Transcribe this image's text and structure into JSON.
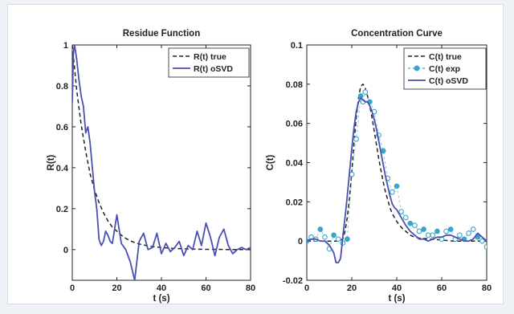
{
  "chart_data": [
    {
      "type": "line",
      "title": "Residue Function",
      "xlabel": "t (s)",
      "ylabel": "R(t)",
      "xlim": [
        0,
        80
      ],
      "ylim": [
        -0.15,
        1
      ],
      "xticks": [
        0,
        20,
        40,
        60,
        80
      ],
      "yticks": [
        0,
        0.2,
        0.4,
        0.6,
        0.8,
        1
      ],
      "xtick_labels": [
        "0",
        "20",
        "40",
        "60",
        "80"
      ],
      "ytick_labels": [
        "0",
        "0.2",
        "0.4",
        "0.6",
        "0.8",
        "1"
      ],
      "legend_position": "top-right",
      "series": [
        {
          "name": "R(t) true",
          "style": "dashed",
          "color": "#222222",
          "x": [
            0,
            2,
            4,
            6,
            8,
            10,
            12,
            14,
            16,
            18,
            20,
            22,
            24,
            26,
            28,
            30,
            35,
            40,
            45,
            50,
            55,
            60,
            65,
            70,
            75,
            80
          ],
          "y": [
            1.0,
            0.78,
            0.61,
            0.48,
            0.37,
            0.29,
            0.23,
            0.18,
            0.14,
            0.11,
            0.09,
            0.07,
            0.055,
            0.043,
            0.034,
            0.027,
            0.016,
            0.01,
            0.006,
            0.004,
            0.002,
            0.001,
            0.001,
            0.0,
            0.0,
            0.0
          ]
        },
        {
          "name": "R(t) oSVD",
          "style": "solid",
          "color": "#4a4fb3",
          "x": [
            0,
            0.5,
            1,
            2,
            3,
            4,
            5,
            6,
            7,
            8,
            9,
            10,
            11,
            12,
            13,
            14,
            15,
            16,
            17,
            18,
            20,
            22,
            24,
            26,
            28,
            30,
            32,
            34,
            36,
            38,
            40,
            42,
            44,
            46,
            48,
            50,
            52,
            54,
            56,
            58,
            60,
            62,
            64,
            66,
            68,
            70,
            72,
            74,
            76,
            78,
            80
          ],
          "y": [
            0.72,
            0.96,
            1.0,
            0.93,
            0.83,
            0.75,
            0.7,
            0.57,
            0.6,
            0.52,
            0.4,
            0.28,
            0.2,
            0.05,
            0.02,
            0.04,
            0.09,
            0.07,
            0.04,
            0.03,
            0.17,
            0.03,
            0.0,
            -0.06,
            -0.15,
            0.04,
            0.08,
            0.0,
            0.01,
            0.08,
            -0.02,
            0.03,
            -0.01,
            0.01,
            0.04,
            -0.03,
            0.02,
            0.0,
            0.09,
            0.02,
            0.13,
            0.06,
            -0.03,
            0.06,
            0.1,
            0.02,
            -0.02,
            0.0,
            0.01,
            0.0,
            0.01
          ]
        }
      ]
    },
    {
      "type": "line",
      "title": "Concentration Curve",
      "xlabel": "t (s)",
      "ylabel": "C(t)",
      "xlim": [
        0,
        80
      ],
      "ylim": [
        -0.02,
        0.1
      ],
      "xticks": [
        0,
        20,
        40,
        60,
        80
      ],
      "yticks": [
        -0.02,
        0,
        0.02,
        0.04,
        0.06,
        0.08,
        0.1
      ],
      "xtick_labels": [
        "0",
        "20",
        "40",
        "60",
        "80"
      ],
      "ytick_labels": [
        "-0.02",
        "0",
        "0.02",
        "0.04",
        "0.06",
        "0.08",
        "0.1"
      ],
      "legend_position": "top-right",
      "series": [
        {
          "name": "C(t) true",
          "style": "dashed",
          "color": "#222222",
          "x": [
            0,
            4,
            8,
            10,
            12,
            14,
            16,
            17,
            18,
            19,
            20,
            21,
            22,
            23,
            24,
            25,
            26,
            27,
            28,
            29,
            30,
            31,
            32,
            33,
            34,
            35,
            36,
            37,
            38,
            39,
            40,
            42,
            44,
            46,
            48,
            50,
            55,
            60,
            65,
            70,
            75,
            80
          ],
          "y": [
            0.0,
            0.0,
            0.0,
            0.0,
            0.0,
            0.0,
            0.001,
            0.005,
            0.012,
            0.022,
            0.035,
            0.05,
            0.063,
            0.073,
            0.079,
            0.08,
            0.078,
            0.074,
            0.069,
            0.063,
            0.056,
            0.049,
            0.042,
            0.036,
            0.03,
            0.025,
            0.021,
            0.017,
            0.014,
            0.012,
            0.01,
            0.007,
            0.005,
            0.003,
            0.002,
            0.0015,
            0.001,
            0.0005,
            0.0,
            0.0,
            0.0,
            0.0
          ]
        },
        {
          "name": "C(t) exp",
          "style": "markers",
          "color": "#39a6c9",
          "x": [
            0,
            2,
            4,
            6,
            8,
            10,
            12,
            14,
            16,
            18,
            20,
            22,
            24,
            25,
            26,
            28,
            30,
            32,
            34,
            36,
            38,
            40,
            42,
            44,
            46,
            48,
            50,
            52,
            54,
            56,
            58,
            60,
            62,
            64,
            66,
            68,
            70,
            72,
            74,
            76,
            78,
            80
          ],
          "y": [
            0.0,
            0.002,
            0.001,
            0.006,
            0.002,
            -0.004,
            0.003,
            0.001,
            -0.001,
            0.001,
            0.034,
            0.052,
            0.074,
            0.071,
            0.076,
            0.071,
            0.066,
            0.054,
            0.046,
            0.032,
            0.025,
            0.028,
            0.015,
            0.012,
            0.009,
            0.008,
            0.005,
            0.006,
            0.003,
            0.003,
            0.005,
            0.001,
            0.005,
            0.006,
            0.001,
            0.003,
            0.001,
            0.004,
            0.006,
            0.002,
            0.0,
            -0.003
          ]
        },
        {
          "name": "C(t) oSVD",
          "style": "solid",
          "color": "#4a4fb3",
          "x": [
            0,
            2,
            4,
            6,
            8,
            10,
            12,
            13,
            14,
            15,
            16,
            17,
            18,
            19,
            20,
            21,
            22,
            23,
            24,
            25,
            26,
            27,
            28,
            29,
            30,
            31,
            32,
            33,
            34,
            35,
            36,
            37,
            38,
            39,
            40,
            42,
            44,
            46,
            48,
            50,
            52,
            54,
            56,
            58,
            60,
            62,
            64,
            66,
            68,
            70,
            72,
            74,
            76,
            78,
            80
          ],
          "y": [
            0.0,
            0.001,
            0.001,
            0.0,
            0.0,
            -0.002,
            -0.006,
            -0.011,
            -0.011,
            -0.009,
            0.002,
            0.012,
            0.023,
            0.035,
            0.047,
            0.058,
            0.066,
            0.071,
            0.073,
            0.072,
            0.071,
            0.071,
            0.069,
            0.066,
            0.062,
            0.057,
            0.051,
            0.045,
            0.039,
            0.033,
            0.028,
            0.023,
            0.019,
            0.017,
            0.016,
            0.012,
            0.008,
            0.005,
            0.003,
            0.001,
            0.001,
            0.0,
            0.001,
            0.002,
            0.002,
            0.003,
            0.003,
            0.002,
            0.001,
            0.0,
            0.0,
            0.001,
            0.004,
            0.002,
            0.0
          ]
        }
      ]
    }
  ]
}
